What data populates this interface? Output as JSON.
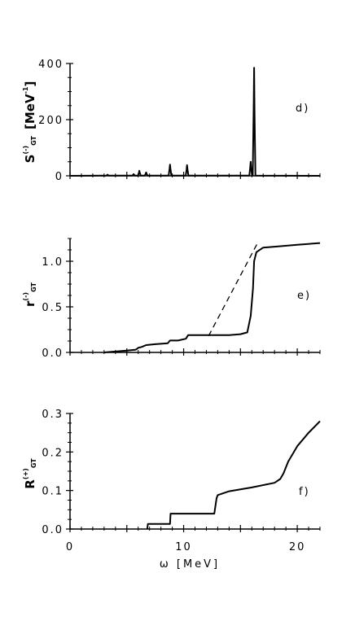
{
  "chart_data": [
    {
      "type": "line",
      "panel_label": "d)",
      "ylabel": {
        "symbol": "S",
        "sup": "(-)",
        "sub": "GT",
        "unit": "[MeV",
        "unit_sup": "-1",
        "unit_close": "]"
      },
      "ylim": [
        0,
        400
      ],
      "xlim": [
        0,
        22
      ],
      "yticks": [
        0,
        200,
        400
      ],
      "ytick_labels": [
        "0",
        "200",
        "400"
      ],
      "series": [
        {
          "style": "solid",
          "peaks": [
            {
              "x": 3.3,
              "y": 4
            },
            {
              "x": 5.6,
              "y": 6
            },
            {
              "x": 6.1,
              "y": 18
            },
            {
              "x": 6.7,
              "y": 12
            },
            {
              "x": 8.8,
              "y": 40
            },
            {
              "x": 10.3,
              "y": 38
            },
            {
              "x": 15.9,
              "y": 50
            },
            {
              "x": 16.2,
              "y": 385
            }
          ]
        }
      ]
    },
    {
      "type": "line",
      "panel_label": "e)",
      "ylabel": {
        "symbol": "r",
        "sup": "(-)",
        "sub": "GT"
      },
      "ylim": [
        0,
        1.25
      ],
      "xlim": [
        0,
        22
      ],
      "yticks": [
        0.0,
        0.5,
        1.0
      ],
      "ytick_labels": [
        "0.0",
        "0.5",
        "1.0"
      ],
      "series": [
        {
          "style": "solid",
          "x": [
            3.0,
            4.0,
            5.0,
            5.8,
            6.0,
            6.3,
            6.7,
            7.5,
            8.6,
            8.8,
            9.5,
            10.2,
            10.4,
            11.0,
            12.0,
            13.0,
            14.0,
            15.0,
            15.6,
            15.9,
            16.1,
            16.2,
            16.4,
            17.0,
            18.0,
            20.0,
            22.0
          ],
          "y": [
            0.0,
            0.01,
            0.02,
            0.03,
            0.05,
            0.06,
            0.08,
            0.09,
            0.1,
            0.13,
            0.13,
            0.15,
            0.19,
            0.19,
            0.19,
            0.19,
            0.19,
            0.2,
            0.22,
            0.4,
            0.7,
            1.0,
            1.1,
            1.15,
            1.16,
            1.18,
            1.2
          ]
        },
        {
          "style": "dashed",
          "x": [
            12.2,
            16.5
          ],
          "y": [
            0.18,
            1.2
          ]
        }
      ]
    },
    {
      "type": "line",
      "panel_label": "f)",
      "ylabel": {
        "symbol": "R",
        "sup": "(+)",
        "sub": "GT"
      },
      "ylim": [
        0,
        0.3
      ],
      "xlim": [
        0,
        22
      ],
      "yticks": [
        0.0,
        0.1,
        0.2,
        0.3
      ],
      "ytick_labels": [
        "0.0",
        "0.1",
        "0.2",
        "0.3"
      ],
      "xticks": [
        0,
        10,
        20
      ],
      "xtick_labels": [
        "0",
        "10",
        "20"
      ],
      "xlabel": "ω [MeV]",
      "series": [
        {
          "style": "solid",
          "x": [
            6.8,
            6.85,
            8.8,
            8.85,
            12.7,
            12.9,
            13.0,
            14.0,
            16.0,
            18.0,
            18.5,
            18.8,
            19.2,
            20.0,
            21.0,
            22.0
          ],
          "y": [
            0.0,
            0.013,
            0.013,
            0.04,
            0.04,
            0.08,
            0.088,
            0.098,
            0.108,
            0.12,
            0.13,
            0.145,
            0.175,
            0.215,
            0.25,
            0.28
          ]
        }
      ]
    }
  ]
}
